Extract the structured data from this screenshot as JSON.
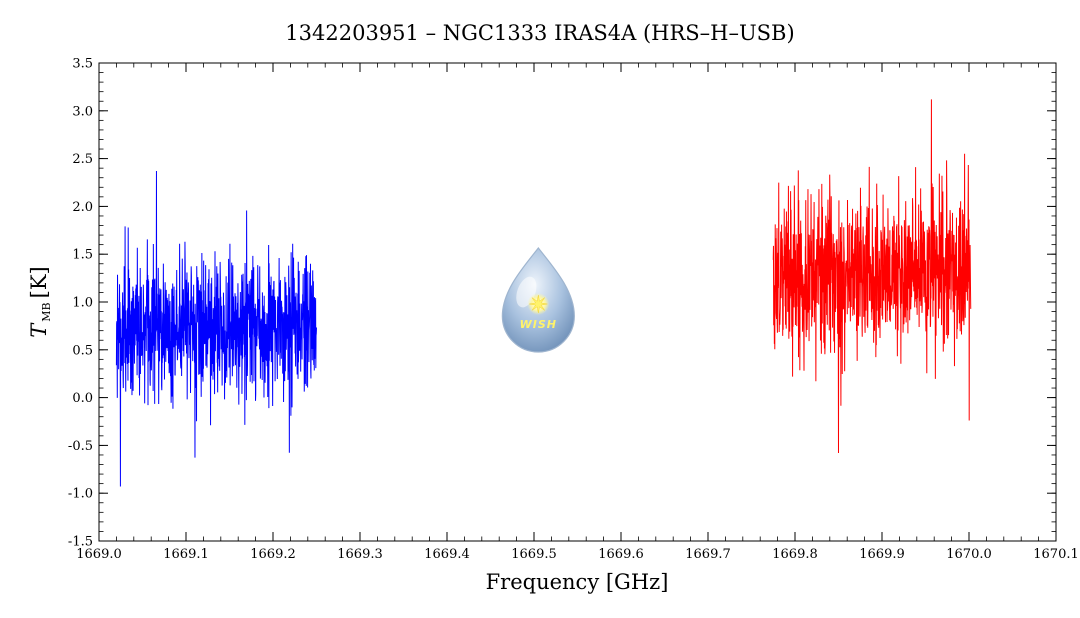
{
  "chart_data": {
    "type": "line",
    "title": "1342203951 – NGC1333 IRAS4A (HRS–H–USB)",
    "xlabel": "Frequency [GHz]",
    "ylabel_symbol": "T",
    "ylabel_subscript": "MB",
    "ylabel_unit": "[K]",
    "xlim": [
      1669.0,
      1670.1
    ],
    "ylim": [
      -1.5,
      3.5
    ],
    "x_ticks": [
      1669.0,
      1669.1,
      1669.2,
      1669.3,
      1669.4,
      1669.5,
      1669.6,
      1669.7,
      1669.8,
      1669.9,
      1670.0,
      1670.1
    ],
    "x_tick_labels": [
      "1669.0",
      "1669.1",
      "1669.2",
      "1669.3",
      "1669.4",
      "1669.5",
      "1669.6",
      "1669.7",
      "1669.8",
      "1669.9",
      "1670.0",
      "1670.1"
    ],
    "y_ticks": [
      -1.5,
      -1.0,
      -0.5,
      0.0,
      0.5,
      1.0,
      1.5,
      2.0,
      2.5,
      3.0,
      3.5
    ],
    "y_tick_labels": [
      "-1.5",
      "-1.0",
      "-0.5",
      "0.0",
      "0.5",
      "1.0",
      "1.5",
      "2.0",
      "2.5",
      "3.0",
      "3.5"
    ],
    "grid": false,
    "series": [
      {
        "color": "#0000ff",
        "x_range": [
          1669.02,
          1669.25
        ],
        "y_mean": 0.72,
        "y_spread": 0.35,
        "y_min": -0.93,
        "y_max": 2.37,
        "samples": 900
      },
      {
        "color": "#ff0000",
        "x_range": [
          1669.775,
          1670.002
        ],
        "y_mean": 1.3,
        "y_spread": 0.42,
        "y_min": -0.58,
        "y_max": 3.12,
        "samples": 900
      }
    ]
  },
  "logo": {
    "text": "WISH",
    "center_x": 1669.505,
    "center_y": 1.0
  }
}
